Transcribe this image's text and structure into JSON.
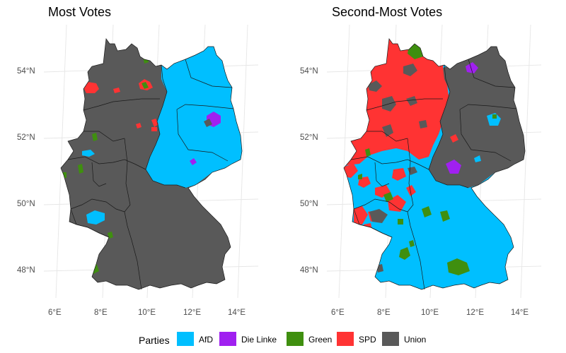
{
  "panels": [
    {
      "title": "Most Votes"
    },
    {
      "title": "Second-Most Votes"
    }
  ],
  "lat_ticks": [
    "54°N",
    "52°N",
    "50°N",
    "48°N"
  ],
  "lon_ticks": [
    "6°E",
    "8°E",
    "10°E",
    "12°E",
    "14°E"
  ],
  "legend": {
    "title": "Parties",
    "items": [
      {
        "label": "AfD",
        "color": "#00BFFF"
      },
      {
        "label": "Die Linke",
        "color": "#A020F0"
      },
      {
        "label": "Green",
        "color": "#3F8F0F"
      },
      {
        "label": "SPD",
        "color": "#FF3333"
      },
      {
        "label": "Union",
        "color": "#595959"
      }
    ]
  }
}
